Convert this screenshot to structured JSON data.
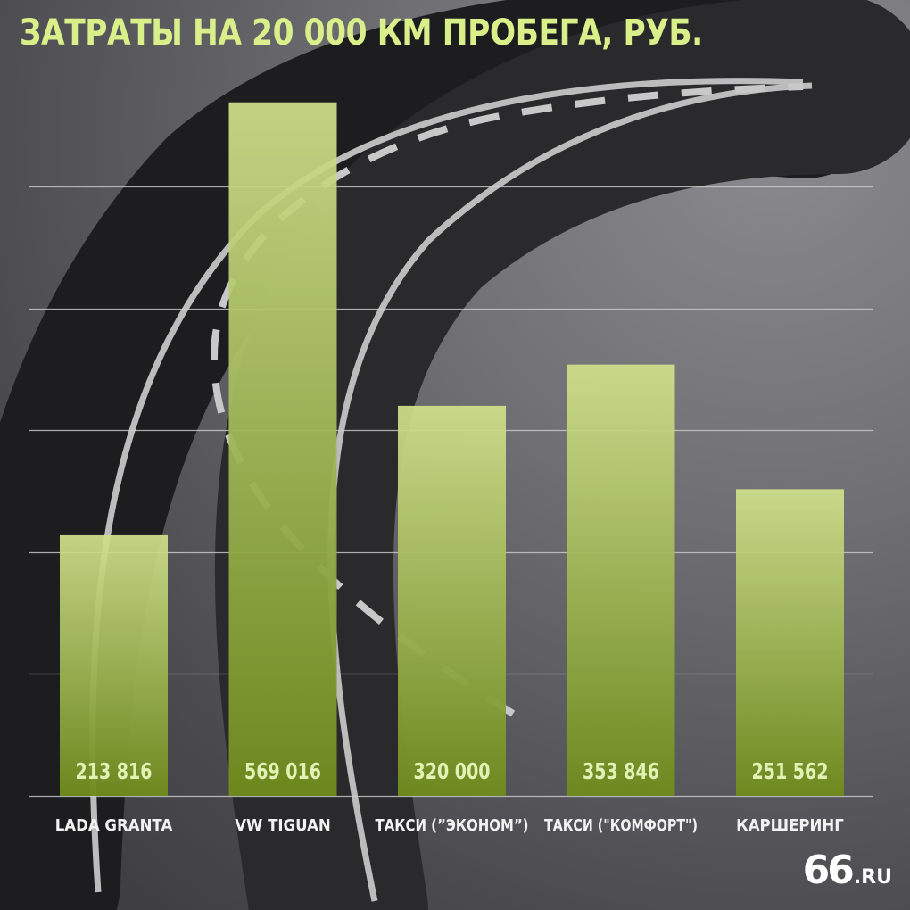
{
  "chart_data": {
    "type": "bar",
    "title": "ЗАТРАТЫ НА 20 000 КМ ПРОБЕГА, РУБ.",
    "xlabel": "",
    "ylabel": "",
    "categories": [
      "LADA GRANTA",
      "VW TIGUAN",
      "ТАКСИ (”ЭКОНОМ”)",
      "ТАКСИ (\"КОМФОРТ\")",
      "КАРШЕРИНГ"
    ],
    "values": [
      213816,
      569016,
      320000,
      353846,
      251562
    ],
    "value_labels": [
      "213 816",
      "569 016",
      "320 000",
      "353 846",
      "251 562"
    ],
    "ylim": [
      0,
      500000
    ],
    "gridlines": [
      100000,
      200000,
      300000,
      400000,
      500000
    ],
    "grid": true,
    "legend": "none",
    "colors": {
      "bar_top": "#cfe08b",
      "bar_bottom": "#6f8a1e",
      "title": "#d8ef8a",
      "grid": "#d0d0d0"
    }
  },
  "logo": {
    "number": "66",
    "suffix": ".RU"
  }
}
